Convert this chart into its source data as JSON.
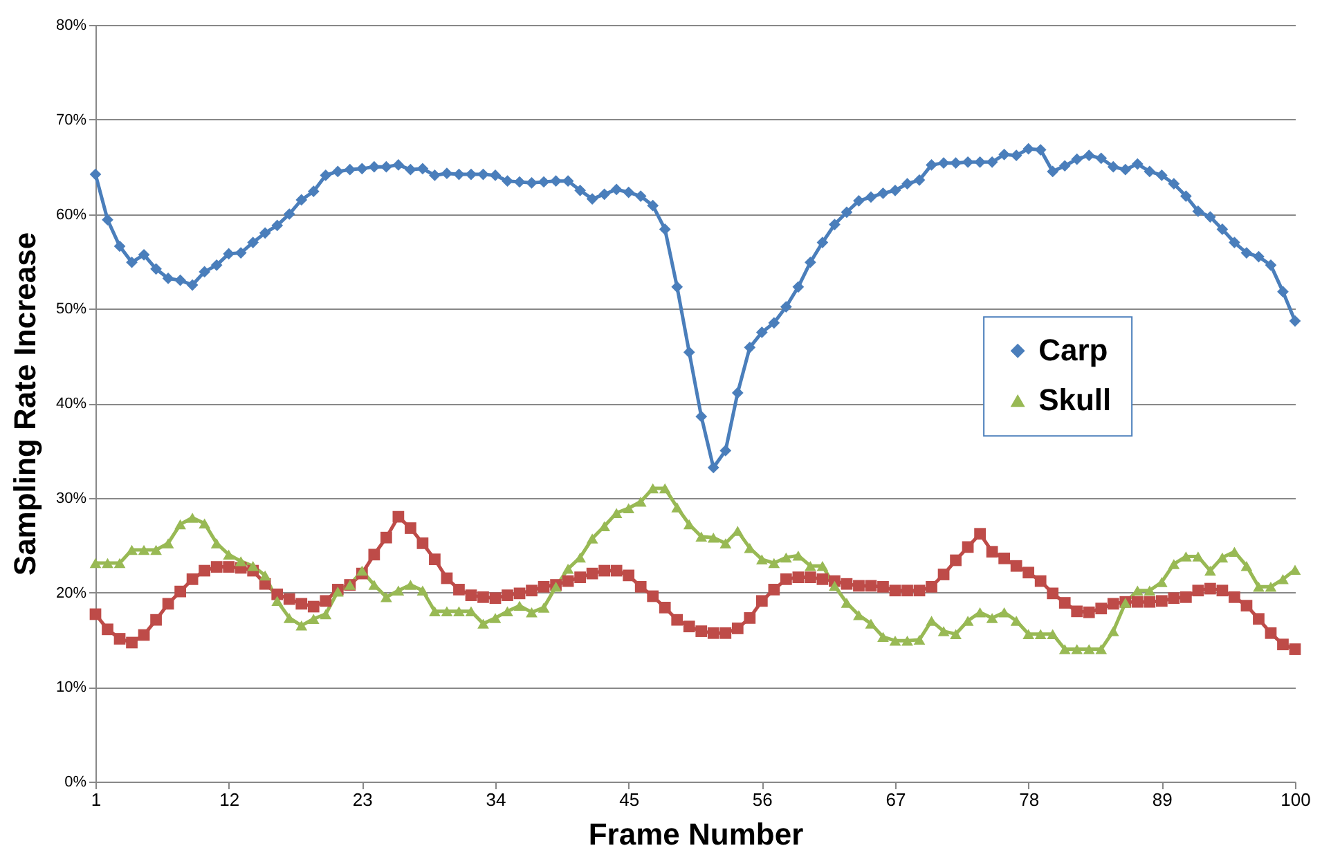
{
  "chart_data": {
    "type": "line",
    "xlabel": "Frame Number",
    "ylabel": "Sampling Rate Increase",
    "x": [
      1,
      2,
      3,
      4,
      5,
      6,
      7,
      8,
      9,
      10,
      11,
      12,
      13,
      14,
      15,
      16,
      17,
      18,
      19,
      20,
      21,
      22,
      23,
      24,
      25,
      26,
      27,
      28,
      29,
      30,
      31,
      32,
      33,
      34,
      35,
      36,
      37,
      38,
      39,
      40,
      41,
      42,
      43,
      44,
      45,
      46,
      47,
      48,
      49,
      50,
      51,
      52,
      53,
      54,
      55,
      56,
      57,
      58,
      59,
      60,
      61,
      62,
      63,
      64,
      65,
      66,
      67,
      68,
      69,
      70,
      71,
      72,
      73,
      74,
      75,
      76,
      77,
      78,
      79,
      80,
      81,
      82,
      83,
      84,
      85,
      86,
      87,
      88,
      89,
      90,
      91,
      92,
      93,
      94,
      95,
      96,
      97,
      98,
      99,
      100
    ],
    "xlim": [
      1,
      100
    ],
    "xticks": [
      1,
      12,
      23,
      34,
      45,
      56,
      67,
      78,
      89,
      100
    ],
    "ylim": [
      0,
      80
    ],
    "yticks": [
      {
        "value": 0,
        "label": "0%"
      },
      {
        "value": 10,
        "label": "10%"
      },
      {
        "value": 20,
        "label": "20%"
      },
      {
        "value": 30,
        "label": "30%"
      },
      {
        "value": 40,
        "label": "40%"
      },
      {
        "value": 50,
        "label": "50%"
      },
      {
        "value": 60,
        "label": "60%"
      },
      {
        "value": 70,
        "label": "70%"
      },
      {
        "value": 80,
        "label": "80%"
      }
    ],
    "grid": "y",
    "legend": "right",
    "line_style": "solid",
    "series": [
      {
        "name": "Carp",
        "color": "#4a7ebb",
        "marker": "diamond",
        "values": [
          64.2,
          59.4,
          56.6,
          54.9,
          55.7,
          54.2,
          53.2,
          53.0,
          52.5,
          53.9,
          54.6,
          55.8,
          55.9,
          57.0,
          58.0,
          58.8,
          60.0,
          61.5,
          62.4,
          64.1,
          64.5,
          64.7,
          64.8,
          65.0,
          65.0,
          65.2,
          64.7,
          64.8,
          64.1,
          64.3,
          64.2,
          64.2,
          64.2,
          64.1,
          63.5,
          63.4,
          63.3,
          63.4,
          63.5,
          63.5,
          62.5,
          61.6,
          62.1,
          62.6,
          62.3,
          61.9,
          60.9,
          58.4,
          52.3,
          45.4,
          38.6,
          33.2,
          35.0,
          41.1,
          45.9,
          47.5,
          48.5,
          50.2,
          52.3,
          54.9,
          57.0,
          58.9,
          60.2,
          61.4,
          61.8,
          62.2,
          62.5,
          63.2,
          63.6,
          65.2,
          65.4,
          65.4,
          65.5,
          65.5,
          65.5,
          66.3,
          66.2,
          66.9,
          66.8,
          64.5,
          65.1,
          65.8,
          66.2,
          65.9,
          65.0,
          64.7,
          65.3,
          64.5,
          64.1,
          63.2,
          61.9,
          60.3,
          59.7,
          58.4,
          57.0,
          55.9,
          55.5,
          54.6,
          51.8,
          48.7
        ]
      },
      {
        "color": "#be4b48",
        "marker": "square",
        "values": [
          17.7,
          16.1,
          15.1,
          14.7,
          15.5,
          17.1,
          18.8,
          20.1,
          21.4,
          22.3,
          22.7,
          22.7,
          22.6,
          22.3,
          20.9,
          19.8,
          19.3,
          18.8,
          18.5,
          19.1,
          20.3,
          20.8,
          22.0,
          24.0,
          25.8,
          28.0,
          26.8,
          25.2,
          23.5,
          21.5,
          20.3,
          19.7,
          19.5,
          19.4,
          19.7,
          19.9,
          20.2,
          20.6,
          20.8,
          21.2,
          21.6,
          22.0,
          22.3,
          22.3,
          21.8,
          20.6,
          19.6,
          18.4,
          17.1,
          16.4,
          15.9,
          15.7,
          15.7,
          16.2,
          17.3,
          19.1,
          20.3,
          21.4,
          21.6,
          21.6,
          21.4,
          21.2,
          20.9,
          20.7,
          20.7,
          20.6,
          20.2,
          20.2,
          20.2,
          20.6,
          21.9,
          23.4,
          24.8,
          26.2,
          24.3,
          23.6,
          22.8,
          22.1,
          21.2,
          19.9,
          18.9,
          18.0,
          17.9,
          18.3,
          18.8,
          19.0,
          19.0,
          19.0,
          19.1,
          19.4,
          19.5,
          20.2,
          20.4,
          20.2,
          19.5,
          18.6,
          17.2,
          15.7,
          14.5,
          14.0
        ]
      },
      {
        "name": "Skull",
        "color": "#98b954",
        "marker": "triangle",
        "values": [
          23.1,
          23.1,
          23.1,
          24.5,
          24.5,
          24.5,
          25.2,
          27.2,
          27.9,
          27.3,
          25.2,
          24.0,
          23.3,
          22.8,
          21.8,
          19.1,
          17.3,
          16.5,
          17.2,
          17.7,
          20.1,
          20.8,
          22.3,
          20.8,
          19.5,
          20.2,
          20.8,
          20.2,
          18.0,
          18.0,
          18.0,
          18.0,
          16.7,
          17.3,
          18.0,
          18.6,
          17.9,
          18.4,
          20.6,
          22.5,
          23.7,
          25.7,
          27.0,
          28.4,
          28.9,
          29.6,
          31.0,
          31.0,
          29.0,
          27.2,
          25.9,
          25.8,
          25.2,
          26.5,
          24.7,
          23.5,
          23.1,
          23.7,
          23.9,
          22.8,
          22.8,
          20.7,
          18.9,
          17.6,
          16.7,
          15.3,
          14.9,
          14.9,
          15.0,
          17.0,
          15.9,
          15.6,
          17.0,
          17.9,
          17.3,
          17.9,
          17.0,
          15.6,
          15.6,
          15.6,
          14.0,
          14.0,
          14.0,
          14.0,
          15.9,
          18.9,
          20.2,
          20.2,
          21.1,
          23.0,
          23.8,
          23.8,
          22.3,
          23.7,
          24.3,
          22.8,
          20.6,
          20.6,
          21.4,
          22.4
        ]
      }
    ]
  }
}
